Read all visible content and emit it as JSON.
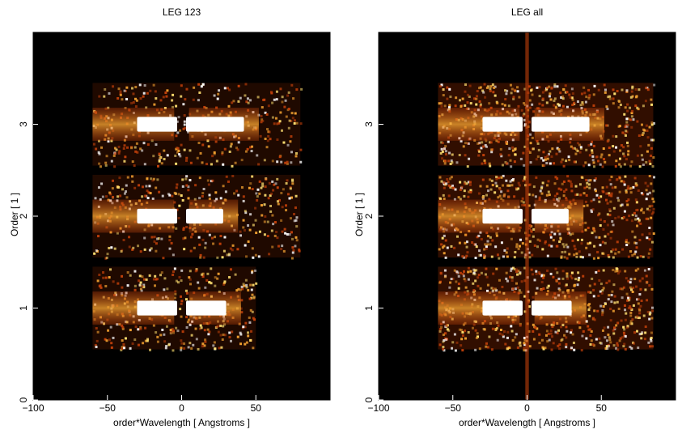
{
  "chart_data": [
    {
      "type": "heatmap",
      "title": "LEG 123",
      "xlabel": "order*Wavelength [ Angstroms ]",
      "ylabel": "Order [ 1 ]",
      "xlim": [
        -100,
        100
      ],
      "ylim": [
        0,
        4
      ],
      "xticks": [
        -100,
        -50,
        0,
        50
      ],
      "yticks": [
        0,
        1,
        2,
        3
      ],
      "grid": false,
      "colormap": "black-red-orange-yellow-white (heat)",
      "bands": [
        {
          "order": 1,
          "x_range": [
            -60,
            50
          ],
          "core_x": [
            -30,
            30
          ]
        },
        {
          "order": 2,
          "x_range": [
            -60,
            80
          ],
          "core_x": [
            -30,
            28
          ]
        },
        {
          "order": 3,
          "x_range": [
            -60,
            80
          ],
          "core_x": [
            -30,
            42
          ]
        }
      ]
    },
    {
      "type": "heatmap",
      "title": "LEG all",
      "xlabel": "order*Wavelength [ Angstroms ]",
      "ylabel": "Order [ 1 ]",
      "xlim": [
        -100,
        100
      ],
      "ylim": [
        0,
        4
      ],
      "xticks": [
        -100,
        -50,
        0,
        50
      ],
      "yticks": [
        0,
        1,
        2,
        3
      ],
      "grid": false,
      "colormap": "black-red-orange-yellow-white (heat)",
      "bands": [
        {
          "order": 1,
          "x_range": [
            -60,
            85
          ],
          "core_x": [
            -30,
            30
          ]
        },
        {
          "order": 2,
          "x_range": [
            -60,
            85
          ],
          "core_x": [
            -30,
            28
          ]
        },
        {
          "order": 3,
          "x_range": [
            -60,
            85
          ],
          "core_x": [
            -30,
            42
          ]
        }
      ]
    }
  ],
  "colors": {
    "background": "#000000",
    "dim": "#5a1a00",
    "mid": "#c0400a",
    "bright": "#f0a030",
    "hot": "#ffe070",
    "white": "#ffffff"
  }
}
